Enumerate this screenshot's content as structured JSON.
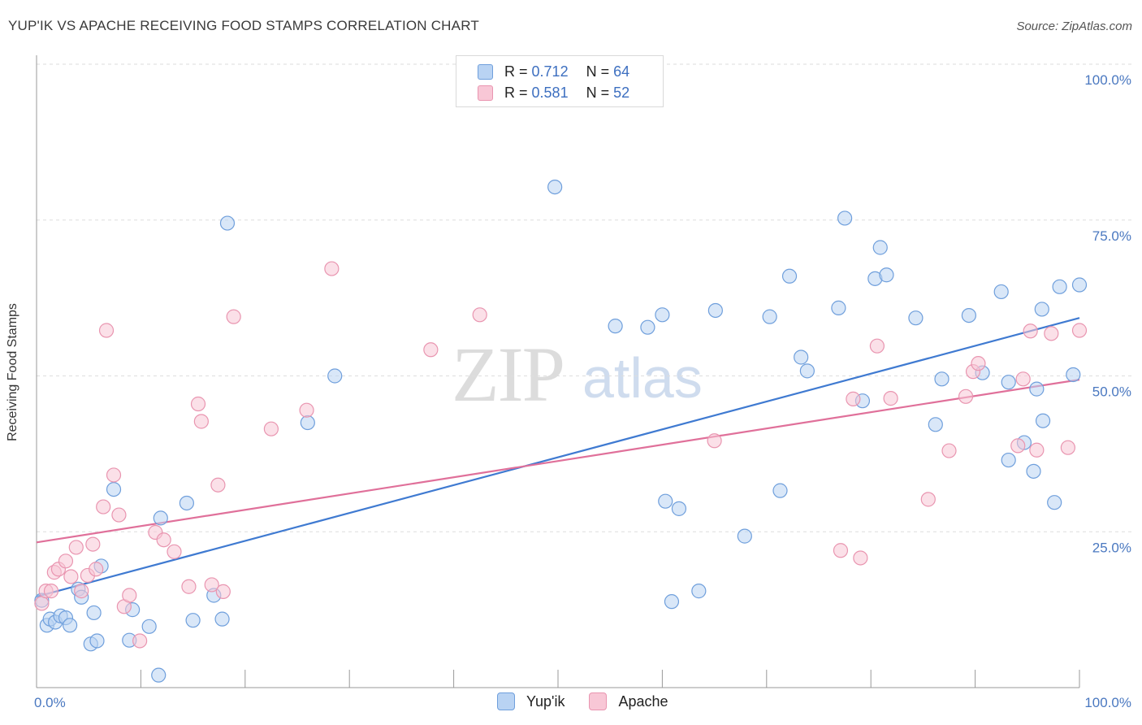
{
  "header": {
    "title": "YUP'IK VS APACHE RECEIVING FOOD STAMPS CORRELATION CHART",
    "source": "Source: ZipAtlas.com"
  },
  "watermark": {
    "zip": "ZIP",
    "atlas": "atlas"
  },
  "legend": {
    "r_label": "R =",
    "n_label": "N =",
    "series": [
      {
        "name": "Yup'ik",
        "r": "0.712",
        "n": "64",
        "fill": "#b9d3f3",
        "stroke": "#6f9fdc"
      },
      {
        "name": "Apache",
        "r": "0.581",
        "n": "52",
        "fill": "#f8c7d6",
        "stroke": "#e995b0"
      }
    ]
  },
  "chart_data": {
    "type": "scatter",
    "title": "YUP'IK VS APACHE RECEIVING FOOD STAMPS CORRELATION CHART",
    "xlabel": "",
    "ylabel": "Receiving Food Stamps",
    "xlim": [
      0,
      100
    ],
    "ylim": [
      0,
      100
    ],
    "x_ticks": [
      {
        "value": 0,
        "label": "0.0%"
      },
      {
        "value": 100,
        "label": "100.0%"
      }
    ],
    "y_ticks": [
      {
        "value": 25,
        "label": "25.0%"
      },
      {
        "value": 50,
        "label": "50.0%"
      },
      {
        "value": 75,
        "label": "75.0%"
      },
      {
        "value": 100,
        "label": "100.0%"
      }
    ],
    "series": [
      {
        "name": "Yup'ik",
        "color": "#3f7ad1",
        "fill": "#b9d3f3",
        "stroke": "#6f9fdc",
        "trend": [
          [
            0,
            14.6
          ],
          [
            100,
            59.3
          ]
        ],
        "points": [
          [
            0.5,
            14
          ],
          [
            1,
            10
          ],
          [
            1.3,
            11
          ],
          [
            1.8,
            10.5
          ],
          [
            2.3,
            11.5
          ],
          [
            2.8,
            11.2
          ],
          [
            3.2,
            10
          ],
          [
            4,
            15.8
          ],
          [
            4.3,
            14.5
          ],
          [
            5.2,
            7
          ],
          [
            5.5,
            12
          ],
          [
            5.8,
            7.5
          ],
          [
            6.2,
            19.5
          ],
          [
            7.4,
            31.8
          ],
          [
            8.9,
            7.6
          ],
          [
            9.2,
            12.5
          ],
          [
            10.8,
            9.8
          ],
          [
            11.7,
            2
          ],
          [
            11.9,
            27.2
          ],
          [
            14.4,
            29.6
          ],
          [
            15,
            10.8
          ],
          [
            17,
            14.8
          ],
          [
            17.8,
            11
          ],
          [
            18.3,
            74.5
          ],
          [
            26,
            42.5
          ],
          [
            28.6,
            50
          ],
          [
            49.7,
            80.3
          ],
          [
            55.5,
            58
          ],
          [
            58.6,
            57.8
          ],
          [
            60,
            59.8
          ],
          [
            60.3,
            29.9
          ],
          [
            60.9,
            13.8
          ],
          [
            61.6,
            28.7
          ],
          [
            63.5,
            15.5
          ],
          [
            65.1,
            60.5
          ],
          [
            67.9,
            24.3
          ],
          [
            70.3,
            59.5
          ],
          [
            71.3,
            31.6
          ],
          [
            72.2,
            66
          ],
          [
            73.3,
            53
          ],
          [
            73.9,
            50.8
          ],
          [
            76.9,
            60.9
          ],
          [
            77.5,
            75.3
          ],
          [
            79.2,
            46
          ],
          [
            80.4,
            65.6
          ],
          [
            80.9,
            70.6
          ],
          [
            81.5,
            66.2
          ],
          [
            84.3,
            59.3
          ],
          [
            86.2,
            42.2
          ],
          [
            86.8,
            49.5
          ],
          [
            89.4,
            59.7
          ],
          [
            90.7,
            50.5
          ],
          [
            92.5,
            63.5
          ],
          [
            93.2,
            49
          ],
          [
            93.2,
            36.5
          ],
          [
            94.7,
            39.3
          ],
          [
            95.6,
            34.7
          ],
          [
            95.9,
            47.9
          ],
          [
            96.4,
            60.7
          ],
          [
            96.5,
            42.8
          ],
          [
            97.6,
            29.7
          ],
          [
            98.1,
            64.3
          ],
          [
            99.4,
            50.2
          ],
          [
            100,
            64.6
          ]
        ]
      },
      {
        "name": "Apache",
        "color": "#e0709a",
        "fill": "#f8c7d6",
        "stroke": "#e995b0",
        "trend": [
          [
            0,
            23.3
          ],
          [
            100,
            49.4
          ]
        ],
        "points": [
          [
            0.5,
            13.5
          ],
          [
            0.9,
            15.5
          ],
          [
            1.4,
            15.5
          ],
          [
            1.7,
            18.5
          ],
          [
            2.1,
            19
          ],
          [
            2.8,
            20.3
          ],
          [
            3.3,
            17.8
          ],
          [
            3.8,
            22.5
          ],
          [
            4.3,
            15.5
          ],
          [
            4.9,
            18
          ],
          [
            5.4,
            23
          ],
          [
            5.7,
            19
          ],
          [
            6.4,
            29
          ],
          [
            6.7,
            57.3
          ],
          [
            7.4,
            34.1
          ],
          [
            7.9,
            27.7
          ],
          [
            8.4,
            13
          ],
          [
            8.9,
            14.8
          ],
          [
            9.9,
            7.5
          ],
          [
            11.4,
            24.9
          ],
          [
            12.2,
            23.7
          ],
          [
            13.2,
            21.8
          ],
          [
            14.6,
            16.2
          ],
          [
            15.5,
            45.5
          ],
          [
            15.8,
            42.7
          ],
          [
            16.8,
            16.5
          ],
          [
            17.4,
            32.5
          ],
          [
            17.9,
            15.4
          ],
          [
            18.9,
            59.5
          ],
          [
            22.5,
            41.5
          ],
          [
            25.9,
            44.5
          ],
          [
            28.3,
            67.2
          ],
          [
            37.8,
            54.2
          ],
          [
            42.5,
            59.8
          ],
          [
            65,
            39.6
          ],
          [
            77.1,
            22
          ],
          [
            78.3,
            46.3
          ],
          [
            79,
            20.8
          ],
          [
            80.6,
            54.8
          ],
          [
            81.9,
            46.4
          ],
          [
            85.5,
            30.2
          ],
          [
            87.5,
            38
          ],
          [
            89.1,
            46.7
          ],
          [
            89.8,
            50.7
          ],
          [
            90.3,
            52
          ],
          [
            94.1,
            38.8
          ],
          [
            94.6,
            49.5
          ],
          [
            95.3,
            57.2
          ],
          [
            95.9,
            38.1
          ],
          [
            97.3,
            56.8
          ],
          [
            98.9,
            38.5
          ],
          [
            100,
            57.3
          ]
        ]
      }
    ]
  }
}
